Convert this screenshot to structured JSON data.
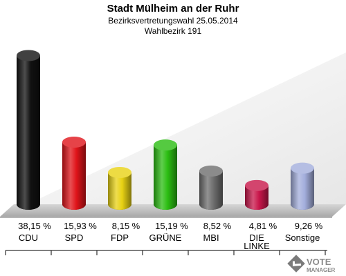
{
  "chart_data": {
    "type": "bar",
    "title": "Stadt Mülheim an der Ruhr",
    "subtitle": "Bezirksvertretungswahl 25.05.2014",
    "subtitle2": "Wahlbezirk 191",
    "categories": [
      "CDU",
      "SPD",
      "FDP",
      "GRÜNE",
      "MBI",
      "DIE LINKE",
      "Sonstige"
    ],
    "values": [
      38.15,
      15.93,
      8.15,
      15.19,
      8.52,
      4.81,
      9.26
    ],
    "value_labels": [
      "38,15 %",
      "15,93 %",
      "8,15 %",
      "15,19 %",
      "8,52 %",
      "4,81 %",
      "9,26 %"
    ],
    "colors": [
      "#111111",
      "#e0141a",
      "#e8d214",
      "#2bbd12",
      "#6e6e6e",
      "#c8164a",
      "#a3aedc"
    ],
    "ylim": [
      0,
      40
    ],
    "grid": false
  },
  "branding": {
    "logo_text_1": "VOTE",
    "logo_text_2": "MANAGER"
  }
}
